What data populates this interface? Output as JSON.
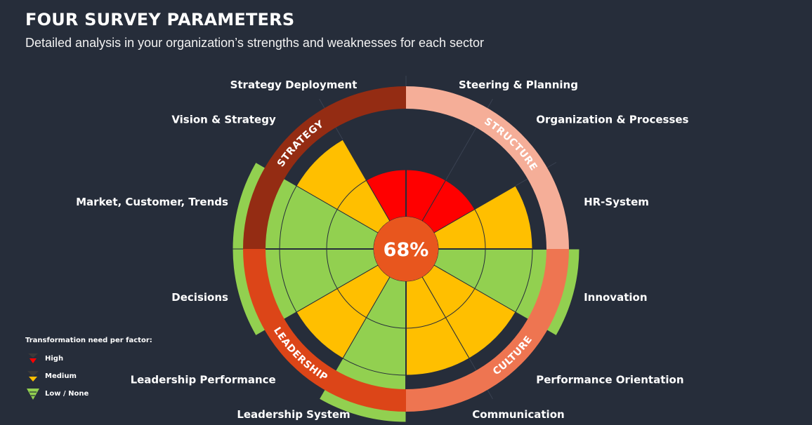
{
  "header": {
    "title": "FOUR SURVEY PARAMETERS",
    "subtitle": "Detailed analysis in your organization’s strengths and weaknesses for each sector"
  },
  "legend": {
    "title": "Transformation need per factor:",
    "items": [
      {
        "label": "High",
        "level": "high"
      },
      {
        "label": "Medium",
        "level": "medium"
      },
      {
        "label": "Low / None",
        "level": "low"
      }
    ]
  },
  "colors": {
    "background": "#262d3a",
    "high": "#ff0000",
    "medium": "#ffbf00",
    "low": "#92d050",
    "center": "#e8561e",
    "strategy": "#942c13",
    "structure": "#f5ae98",
    "culture": "#ee7551",
    "leadership": "#dc4518"
  },
  "chart_data": {
    "type": "polar-area",
    "center_label": "68%",
    "max_level": 3,
    "sectors": [
      {
        "name": "STRATEGY",
        "color_key": "strategy",
        "factors": [
          "Strategy Deployment",
          "Vision & Strategy",
          "Market, Customer, Trends"
        ]
      },
      {
        "name": "STRUCTURE",
        "color_key": "structure",
        "factors": [
          "Steering & Planning",
          "Organization & Processes",
          "HR-System"
        ]
      },
      {
        "name": "CULTURE",
        "color_key": "culture",
        "factors": [
          "Innovation",
          "Performance Orientation",
          "Communication"
        ]
      },
      {
        "name": "LEADERSHIP",
        "color_key": "leadership",
        "factors": [
          "Decisions",
          "Leadership Performance",
          "Leadership System"
        ]
      }
    ],
    "factors": [
      {
        "label": "Steering & Planning",
        "level": 1,
        "need": "high"
      },
      {
        "label": "Organization & Processes",
        "level": 1,
        "need": "high"
      },
      {
        "label": "HR-System",
        "level": 2,
        "need": "medium"
      },
      {
        "label": "Innovation",
        "level": 3,
        "need": "low"
      },
      {
        "label": "Performance Orientation",
        "level": 2,
        "need": "medium"
      },
      {
        "label": "Communication",
        "level": 2,
        "need": "medium"
      },
      {
        "label": "Leadership System",
        "level": 3,
        "need": "low"
      },
      {
        "label": "Leadership Performance",
        "level": 2,
        "need": "medium"
      },
      {
        "label": "Decisions",
        "level": 3,
        "need": "low"
      },
      {
        "label": "Market, Customer, Trends",
        "level": 3,
        "need": "low"
      },
      {
        "label": "Vision & Strategy",
        "level": 2,
        "need": "medium"
      },
      {
        "label": "Strategy Deployment",
        "level": 1,
        "need": "high"
      }
    ]
  }
}
